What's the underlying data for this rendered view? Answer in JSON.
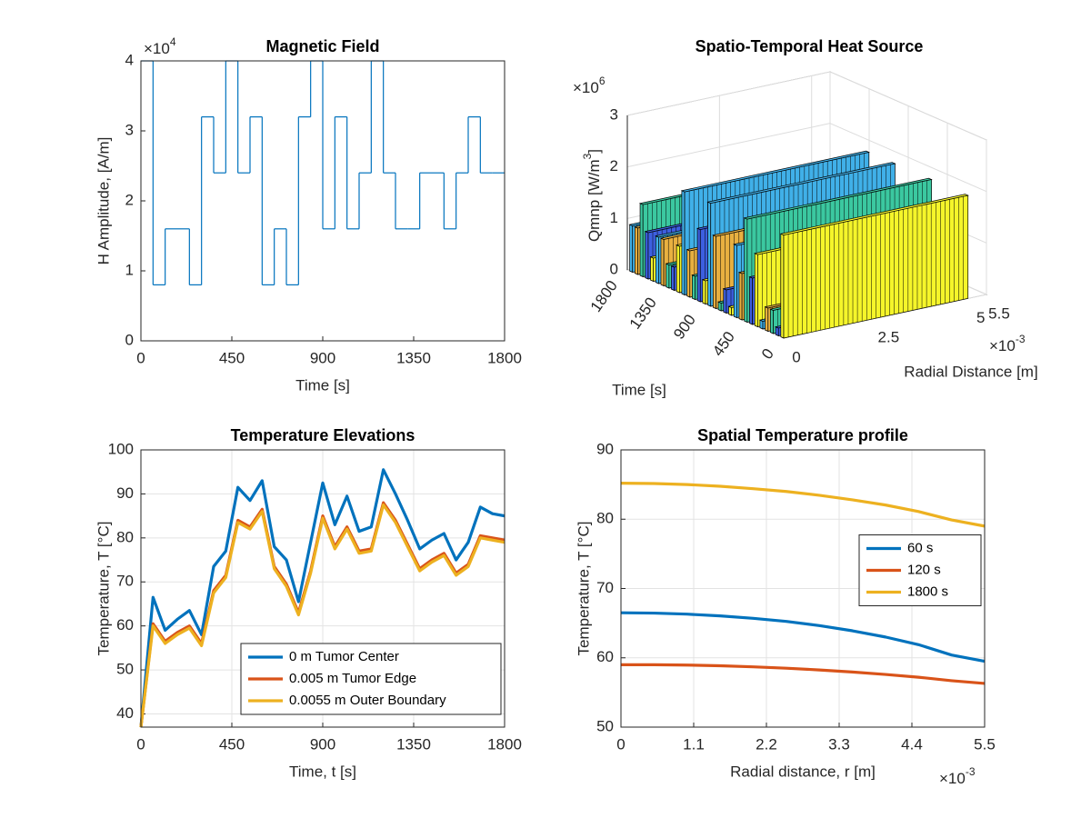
{
  "chart_data": [
    {
      "type": "stairs",
      "title": "Magnetic Field",
      "xlabel": "Time [s]",
      "ylabel": "H Amplitude, [A/m]",
      "y_multiplier": "×10",
      "y_multiplier_exp": "4",
      "x": [
        0,
        60,
        120,
        180,
        240,
        300,
        360,
        420,
        480,
        540,
        600,
        660,
        720,
        780,
        840,
        900,
        960,
        1020,
        1080,
        1140,
        1200,
        1260,
        1320,
        1380,
        1440,
        1500,
        1560,
        1620,
        1680,
        1740
      ],
      "values": [
        4,
        0.8,
        1.6,
        1.6,
        0.8,
        3.2,
        2.4,
        4,
        2.4,
        3.2,
        0.8,
        1.6,
        0.8,
        3.2,
        4,
        1.6,
        3.2,
        1.6,
        2.4,
        4,
        2.4,
        1.6,
        1.6,
        2.4,
        2.4,
        1.6,
        2.4,
        3.2,
        2.4,
        2.4
      ],
      "color": "#0072bd",
      "xlim": [
        0,
        1800
      ],
      "xticks": [
        0,
        450,
        900,
        1350,
        1800
      ],
      "ylim": [
        0,
        4
      ],
      "yticks": [
        0,
        1,
        2,
        3,
        4
      ],
      "grid": false
    },
    {
      "type": "bar3",
      "title": "Spatio-Temporal Heat Source",
      "xlabel": "Time [s]",
      "ylabel": "Radial Distance [m]",
      "zlabel": {
        "text": "Qmnp [W/m",
        "sup": "3",
        "tail": "]"
      },
      "y_multiplier": "×10",
      "y_multiplier_exp": "-3",
      "z_multiplier": "×10",
      "z_multiplier_exp": "6",
      "x": [
        0,
        60,
        120,
        180,
        240,
        300,
        360,
        420,
        480,
        540,
        600,
        660,
        720,
        780,
        840,
        900,
        960,
        1020,
        1080,
        1140,
        1200,
        1260,
        1320,
        1380,
        1440,
        1500,
        1560,
        1620,
        1680,
        1740
      ],
      "values": [
        2,
        0.15,
        0.45,
        0.45,
        0.15,
        1.4,
        0.9,
        2,
        0.9,
        1.4,
        0.15,
        0.45,
        0.15,
        1.4,
        2,
        0.45,
        1.4,
        0.45,
        0.9,
        2,
        0.9,
        0.45,
        0.45,
        0.9,
        0.9,
        0.45,
        0.9,
        1.4,
        0.9,
        0.9
      ],
      "bar_extent": [
        0,
        5
      ],
      "colors": [
        "#f5f52a",
        "#3d5fe0",
        "#3bc8a0",
        "#e8b040",
        "#40b0e8"
      ],
      "xlim": [
        0,
        1800
      ],
      "xticks": [
        0,
        450,
        900,
        1350,
        1800
      ],
      "ylim": [
        0,
        5.5
      ],
      "yticks": [
        0,
        2.5,
        5,
        5.5
      ],
      "zlim": [
        0,
        3
      ],
      "zticks": [
        0,
        1,
        2,
        3
      ],
      "grid": true
    },
    {
      "type": "line",
      "title": "Temperature Elevations",
      "xlabel": "Time, t [s]",
      "ylabel": "Temperature, T [°C]",
      "x": [
        0,
        60,
        120,
        180,
        240,
        300,
        360,
        420,
        480,
        540,
        600,
        660,
        720,
        780,
        840,
        900,
        960,
        1020,
        1080,
        1140,
        1200,
        1260,
        1320,
        1380,
        1440,
        1500,
        1560,
        1620,
        1680,
        1740,
        1800
      ],
      "series": [
        {
          "name": "0 m Tumor Center",
          "color": "#0072bd",
          "values": [
            37,
            66.5,
            59,
            61.5,
            63.5,
            58,
            73.5,
            77,
            91.5,
            88.5,
            93,
            78,
            75,
            65.5,
            79,
            92.5,
            83,
            89.5,
            81.5,
            82.5,
            95.5,
            90,
            84,
            77.5,
            79.5,
            81,
            75,
            79,
            87,
            85.5,
            85
          ]
        },
        {
          "name": "0.005 m Tumor Edge",
          "color": "#d95319",
          "values": [
            37,
            60.5,
            56.5,
            58.5,
            60,
            56,
            68,
            71.5,
            84,
            82.5,
            86.5,
            73.5,
            69.5,
            63,
            72.5,
            85,
            78,
            82.5,
            77,
            77.5,
            88,
            84,
            78.5,
            73,
            75,
            76.5,
            72,
            74,
            80.5,
            80,
            79.5
          ]
        },
        {
          "name": "0.0055 m Outer Boundary",
          "color": "#edb120",
          "values": [
            37,
            60,
            56,
            58,
            59.5,
            55.5,
            67.5,
            71,
            83.5,
            82,
            86,
            73,
            69,
            62.5,
            72,
            84.5,
            77.5,
            82,
            76.5,
            77,
            87.5,
            83.5,
            78,
            72.5,
            74.5,
            76,
            71.5,
            73.5,
            80,
            79.5,
            79
          ]
        }
      ],
      "xlim": [
        0,
        1800
      ],
      "xticks": [
        0,
        450,
        900,
        1350,
        1800
      ],
      "ylim": [
        37,
        100
      ],
      "yticks": [
        40,
        50,
        60,
        70,
        80,
        90,
        100
      ],
      "grid": true,
      "legend": "southeast"
    },
    {
      "type": "line",
      "title": "Spatial Temperature profile",
      "xlabel": "Radial distance, r [m]",
      "ylabel": "Temperature, T [°C]",
      "x_multiplier": "×10",
      "x_multiplier_exp": "-3",
      "x": [
        0,
        0.5,
        1,
        1.5,
        2,
        2.5,
        3,
        3.5,
        4,
        4.5,
        5,
        5.5
      ],
      "series": [
        {
          "name": "60 s",
          "color": "#0072bd",
          "values": [
            66.5,
            66.45,
            66.3,
            66.05,
            65.7,
            65.25,
            64.65,
            63.9,
            63,
            61.9,
            60.4,
            59.5
          ]
        },
        {
          "name": "120 s",
          "color": "#d95319",
          "values": [
            59,
            59,
            58.95,
            58.85,
            58.7,
            58.5,
            58.25,
            57.95,
            57.6,
            57.2,
            56.7,
            56.3
          ]
        },
        {
          "name": "1800 s",
          "color": "#edb120",
          "values": [
            85.2,
            85.15,
            85,
            84.75,
            84.4,
            84,
            83.45,
            82.8,
            82.05,
            81.1,
            79.9,
            79
          ]
        }
      ],
      "xlim": [
        0,
        5.5
      ],
      "xticks": [
        0,
        1.1,
        2.2,
        3.3,
        4.4,
        5.5
      ],
      "ylim": [
        50,
        90
      ],
      "yticks": [
        50,
        60,
        70,
        80,
        90
      ],
      "grid": true,
      "legend": "east"
    }
  ]
}
